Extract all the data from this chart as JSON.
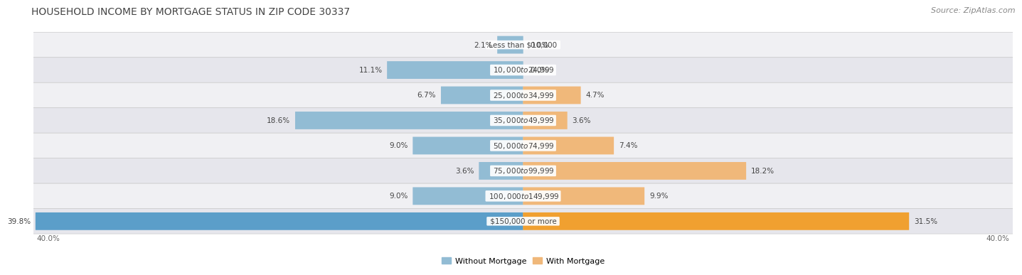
{
  "title": "HOUSEHOLD INCOME BY MORTGAGE STATUS IN ZIP CODE 30337",
  "source": "Source: ZipAtlas.com",
  "categories": [
    "Less than $10,000",
    "$10,000 to $24,999",
    "$25,000 to $34,999",
    "$35,000 to $49,999",
    "$50,000 to $74,999",
    "$75,000 to $99,999",
    "$100,000 to $149,999",
    "$150,000 or more"
  ],
  "without_mortgage": [
    2.1,
    11.1,
    6.7,
    18.6,
    9.0,
    3.6,
    9.0,
    39.8
  ],
  "with_mortgage": [
    0.0,
    0.0,
    4.7,
    3.6,
    7.4,
    18.2,
    9.9,
    31.5
  ],
  "color_without": "#92bcd4",
  "color_with": "#f0b87a",
  "color_without_last": "#5b9ec9",
  "color_with_last": "#f0a030",
  "bg_light": "#f0f0f3",
  "bg_dark": "#e6e6ec",
  "axis_max": 40.0,
  "axis_label_left": "40.0%",
  "axis_label_right": "40.0%",
  "title_fontsize": 10,
  "source_fontsize": 8,
  "legend_fontsize": 8,
  "value_fontsize": 7.5,
  "category_fontsize": 7.5
}
